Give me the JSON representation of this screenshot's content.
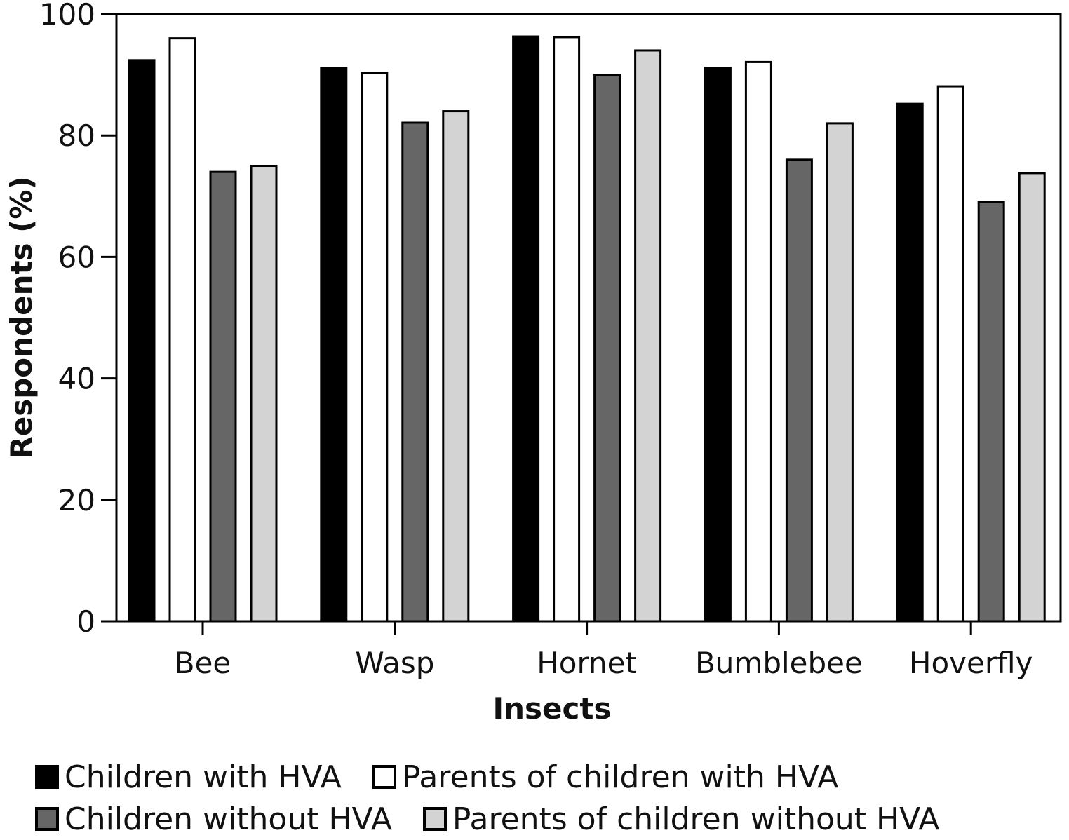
{
  "chart_data": {
    "type": "bar",
    "title": "",
    "xlabel": "Insects",
    "ylabel": "Respondents (%)",
    "ylim": [
      0,
      100
    ],
    "yticks": [
      0,
      20,
      40,
      60,
      80,
      100
    ],
    "grid": false,
    "legend_position": "bottom",
    "categories": [
      "Bee",
      "Wasp",
      "Hornet",
      "Bumblebee",
      "Hoverfly"
    ],
    "series": [
      {
        "name": "Children with HVA",
        "color": "#000000",
        "values": [
          92.4,
          91.1,
          96.3,
          91.1,
          85.2
        ]
      },
      {
        "name": "Parents of children with HVA",
        "color": "#ffffff",
        "values": [
          96.0,
          90.3,
          96.2,
          92.1,
          88.1
        ]
      },
      {
        "name": "Children without HVA",
        "color": "#666666",
        "values": [
          74.0,
          82.1,
          90.0,
          76.0,
          69.0
        ]
      },
      {
        "name": "Parents of children without HVA",
        "color": "#d3d3d3",
        "values": [
          75.0,
          84.0,
          94.0,
          82.0,
          73.8
        ]
      }
    ]
  }
}
